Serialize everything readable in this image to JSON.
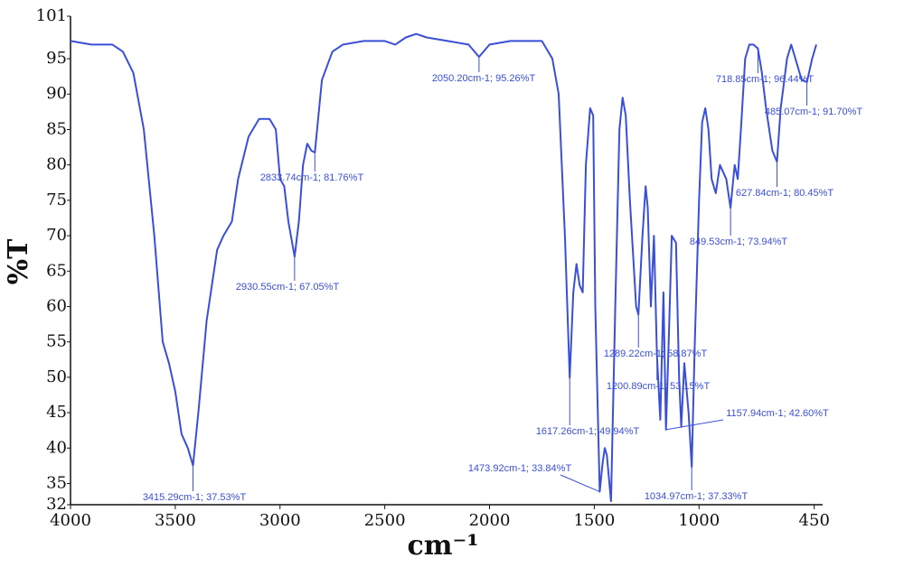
{
  "chart_data": {
    "type": "line",
    "xlabel": "cm⁻¹",
    "ylabel": "%T",
    "xlim": [
      4000,
      410
    ],
    "ylim": [
      32,
      101
    ],
    "xticks": [
      4000,
      3500,
      3000,
      2500,
      2000,
      1500,
      1000,
      450
    ],
    "yticks": [
      32,
      35,
      40,
      45,
      50,
      55,
      60,
      65,
      70,
      75,
      80,
      85,
      90,
      95,
      101
    ],
    "series": [
      {
        "color": "#3a4fd8",
        "x": [
          4000,
          3900,
          3800,
          3750,
          3700,
          3650,
          3600,
          3560,
          3530,
          3500,
          3470,
          3440,
          3415.29,
          3390,
          3350,
          3300,
          3270,
          3230,
          3200,
          3150,
          3100,
          3050,
          3020,
          3000,
          2980,
          2960,
          2930.55,
          2910,
          2890,
          2870,
          2850,
          2833.74,
          2800,
          2750,
          2700,
          2600,
          2500,
          2450,
          2400,
          2350,
          2300,
          2200,
          2100,
          2050.2,
          2000,
          1900,
          1750,
          1700,
          1670,
          1640,
          1617.26,
          1600,
          1585,
          1570,
          1555,
          1540,
          1520,
          1505,
          1495,
          1473.92,
          1460,
          1450,
          1440,
          1420,
          1400,
          1380,
          1365,
          1350,
          1330,
          1300,
          1289.22,
          1270,
          1255,
          1245,
          1230,
          1215,
          1200.89,
          1185,
          1170,
          1157.94,
          1145,
          1130,
          1110,
          1095,
          1085,
          1070,
          1050,
          1034.97,
          1020,
          1000,
          985,
          970,
          955,
          940,
          920,
          900,
          870,
          849.53,
          830,
          815,
          800,
          780,
          760,
          740,
          718.85,
          700,
          680,
          650,
          627.84,
          610,
          580,
          560,
          540,
          510,
          485.07,
          460,
          440
        ],
        "values": [
          97.5,
          97,
          97,
          96,
          93,
          85,
          70,
          55,
          52,
          48,
          42,
          40,
          37.53,
          45,
          58,
          68,
          70,
          72,
          78,
          84,
          86.5,
          86.5,
          85,
          78,
          77,
          72,
          67.05,
          72,
          80,
          83,
          82,
          81.76,
          92,
          96,
          97,
          97.5,
          97.5,
          97,
          98,
          98.5,
          98,
          97.5,
          97,
          95.26,
          97,
          97.5,
          97.5,
          95,
          90,
          70,
          49.94,
          62,
          66,
          63,
          62,
          80,
          88,
          87,
          60,
          33.84,
          38,
          40,
          39,
          32.5,
          60,
          85,
          89.5,
          87,
          75,
          60,
          58.87,
          70,
          77,
          74,
          60,
          70,
          53.15,
          44,
          62,
          42.6,
          55,
          70,
          69,
          50,
          43,
          52,
          45,
          37.33,
          55,
          75,
          86,
          88,
          85,
          78,
          76,
          80,
          78,
          73.94,
          80,
          78,
          85,
          95,
          97,
          97,
          96.44,
          93,
          88,
          82,
          80.45,
          88,
          95,
          97,
          95,
          92,
          91.7,
          95,
          97
        ]
      }
    ],
    "annotations": [
      {
        "x": 3415.29,
        "y": 37.53,
        "label": "3415.29cm-1; 37.53%T"
      },
      {
        "x": 2930.55,
        "y": 67.05,
        "label": "2930.55cm-1; 67.05%T"
      },
      {
        "x": 2833.74,
        "y": 81.76,
        "label": "2833.74cm-1; 81.76%T"
      },
      {
        "x": 2050.2,
        "y": 95.26,
        "label": "2050.20cm-1; 95.26%T"
      },
      {
        "x": 1617.26,
        "y": 49.94,
        "label": "1617.26cm-1; 49.94%T"
      },
      {
        "x": 1473.92,
        "y": 33.84,
        "label": "1473.92cm-1; 33.84%T"
      },
      {
        "x": 1289.22,
        "y": 58.87,
        "label": "1289.22cm-1; 58.87%T"
      },
      {
        "x": 1200.89,
        "y": 53.15,
        "label": "1200.89cm-1; 53.15%T"
      },
      {
        "x": 1157.94,
        "y": 42.6,
        "label": "1157.94cm-1; 42.60%T"
      },
      {
        "x": 1034.97,
        "y": 37.33,
        "label": "1034.97cm-1; 37.33%T"
      },
      {
        "x": 849.53,
        "y": 73.94,
        "label": "849.53cm-1; 73.94%T"
      },
      {
        "x": 627.84,
        "y": 80.45,
        "label": "627.84cm-1; 80.45%T"
      },
      {
        "x": 718.85,
        "y": 96.44,
        "label": "718.85cm-1; 96.44%T"
      },
      {
        "x": 485.07,
        "y": 91.7,
        "label": "485.07cm-1; 91.70%T"
      }
    ]
  }
}
